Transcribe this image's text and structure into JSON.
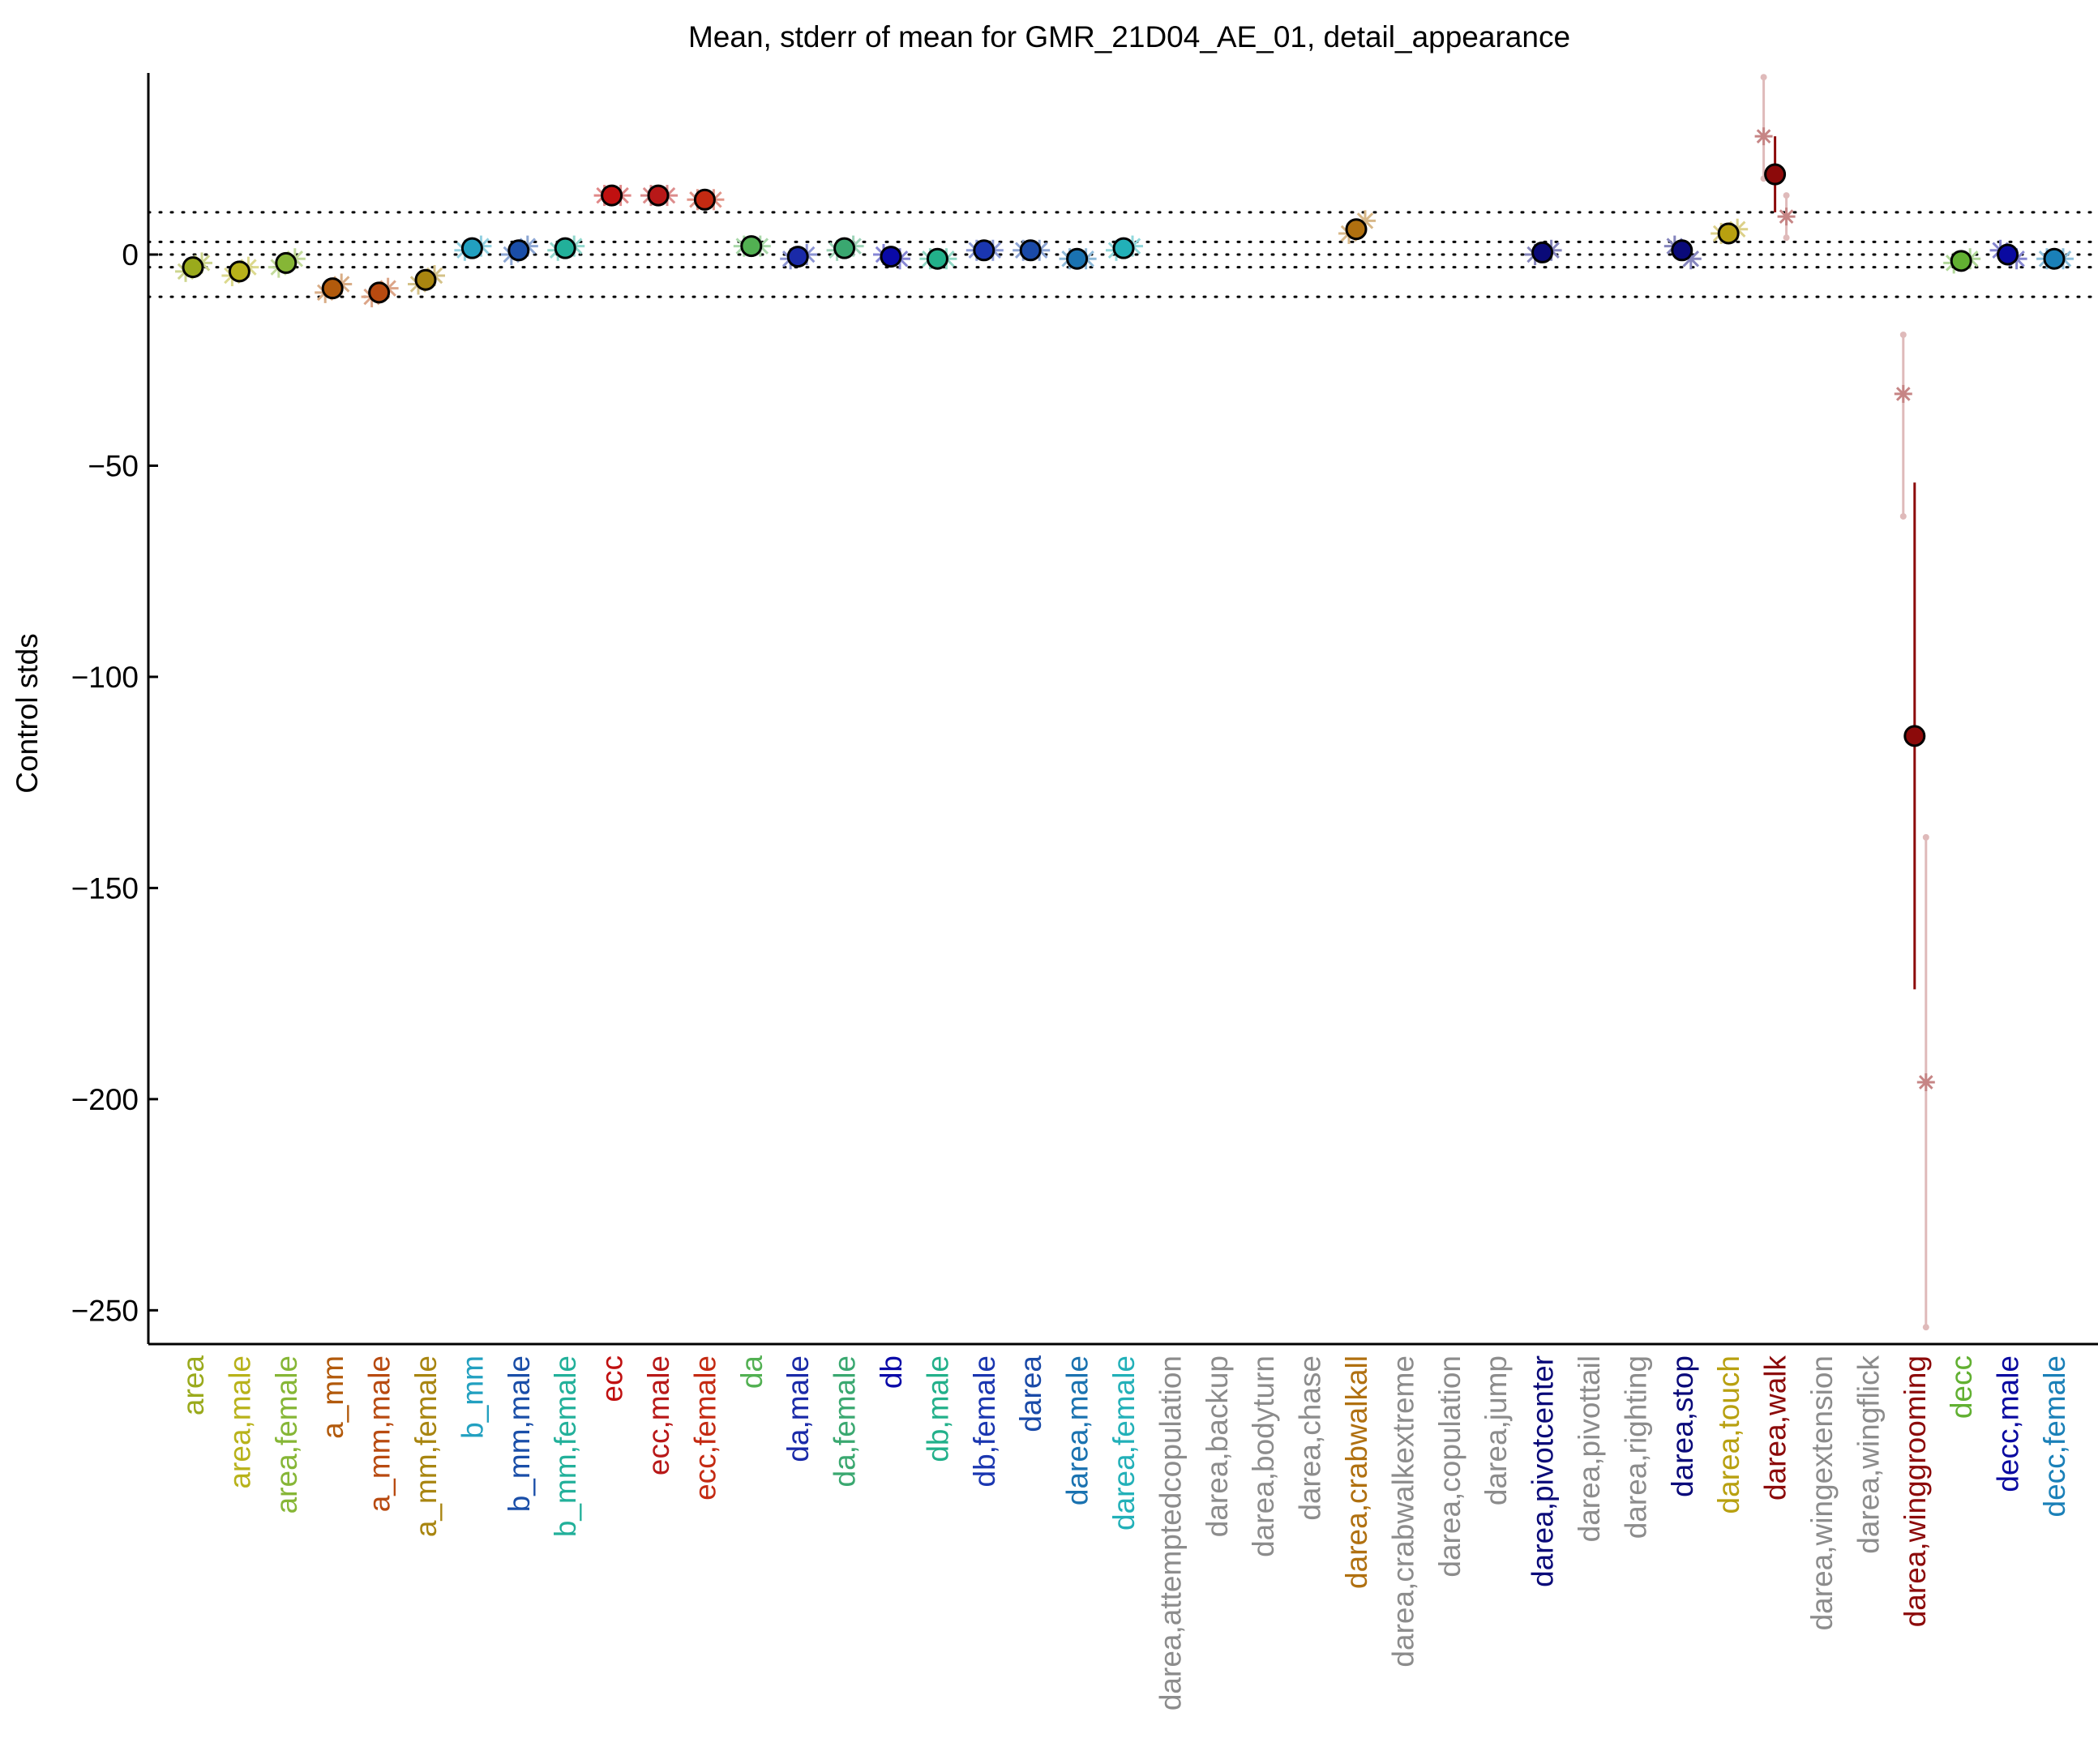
{
  "chart_data": {
    "type": "scatter",
    "title": "Mean, stderr of mean for GMR_21D04_AE_01, detail_appearance",
    "ylabel": "Control stds",
    "xlabel": "",
    "ylim": [
      -258,
      43
    ],
    "yticks": [
      -250,
      -200,
      -150,
      -100,
      -50,
      0
    ],
    "reference_lines": [
      -10,
      -3,
      0,
      3,
      10
    ],
    "grid": false,
    "categories": [
      {
        "label": "area",
        "color": "#9aaa1c",
        "mean": -3,
        "err": 1.5,
        "subs": [
          -4,
          -2
        ]
      },
      {
        "label": "area,male",
        "color": "#b8b21a",
        "mean": -4,
        "err": 1.5,
        "subs": [
          -5,
          -3
        ]
      },
      {
        "label": "area,female",
        "color": "#86b636",
        "mean": -2,
        "err": 1.2,
        "subs": [
          -3,
          -1
        ]
      },
      {
        "label": "a_mm",
        "color": "#b25a0c",
        "mean": -8,
        "err": 1.5,
        "subs": [
          -9,
          -7
        ]
      },
      {
        "label": "a_mm,male",
        "color": "#b84a10",
        "mean": -9,
        "err": 1.5,
        "subs": [
          -10,
          -8
        ]
      },
      {
        "label": "a_mm,female",
        "color": "#a88510",
        "mean": -6,
        "err": 1.5,
        "subs": [
          -7,
          -5
        ]
      },
      {
        "label": "b_mm",
        "color": "#22a0c0",
        "mean": 1.5,
        "err": 1.0,
        "subs": [
          1,
          2
        ]
      },
      {
        "label": "b_mm,male",
        "color": "#1a4ea8",
        "mean": 1,
        "err": 1.0,
        "subs": [
          0,
          2
        ]
      },
      {
        "label": "b_mm,female",
        "color": "#22b09a",
        "mean": 1.5,
        "err": 1.0,
        "subs": [
          1,
          2
        ]
      },
      {
        "label": "ecc",
        "color": "#c01010",
        "mean": 14,
        "err": 0.5,
        "subs": [
          14,
          14
        ]
      },
      {
        "label": "ecc,male",
        "color": "#b81818",
        "mean": 14,
        "err": 0.5,
        "subs": [
          14,
          14
        ]
      },
      {
        "label": "ecc,female",
        "color": "#c42a12",
        "mean": 13,
        "err": 0.5,
        "subs": [
          13,
          13
        ]
      },
      {
        "label": "da",
        "color": "#52b052",
        "mean": 2,
        "err": 1.0,
        "subs": [
          2,
          2
        ]
      },
      {
        "label": "da,male",
        "color": "#1a2aa8",
        "mean": -0.5,
        "err": 1.0,
        "subs": [
          -1,
          0
        ]
      },
      {
        "label": "da,female",
        "color": "#3aa870",
        "mean": 1.5,
        "err": 1.0,
        "subs": [
          1,
          2
        ]
      },
      {
        "label": "db",
        "color": "#0a0aa8",
        "mean": -0.5,
        "err": 1.0,
        "subs": [
          0,
          -1
        ]
      },
      {
        "label": "db,male",
        "color": "#22b08a",
        "mean": -1,
        "err": 1.0,
        "subs": [
          -1,
          -1
        ]
      },
      {
        "label": "db,female",
        "color": "#1a36b0",
        "mean": 1,
        "err": 1.0,
        "subs": [
          1,
          1
        ]
      },
      {
        "label": "darea",
        "color": "#1a4aa8",
        "mean": 1,
        "err": 1.0,
        "subs": [
          1,
          1
        ]
      },
      {
        "label": "darea,male",
        "color": "#1a72b0",
        "mean": -1,
        "err": 1.0,
        "subs": [
          -1,
          -1
        ]
      },
      {
        "label": "darea,female",
        "color": "#22b0b8",
        "mean": 1.5,
        "err": 1.0,
        "subs": [
          1,
          2
        ]
      },
      {
        "label": "darea,attemptedcopulation",
        "color": "#8c8c8c"
      },
      {
        "label": "darea,backup",
        "color": "#8c8c8c"
      },
      {
        "label": "darea,bodyturn",
        "color": "#8c8c8c"
      },
      {
        "label": "darea,chase",
        "color": "#8c8c8c"
      },
      {
        "label": "darea,crabwalkall",
        "color": "#b07010",
        "mean": 6,
        "err": 2.5,
        "subs": [
          5,
          8
        ]
      },
      {
        "label": "darea,crabwalkextreme",
        "color": "#8c8c8c"
      },
      {
        "label": "darea,copulation",
        "color": "#8c8c8c"
      },
      {
        "label": "darea,jump",
        "color": "#8c8c8c"
      },
      {
        "label": "darea,pivotcenter",
        "color": "#0a0a78",
        "mean": 0.5,
        "err": 1.0,
        "subs": [
          0,
          1
        ]
      },
      {
        "label": "darea,pivottail",
        "color": "#8c8c8c"
      },
      {
        "label": "darea,righting",
        "color": "#8c8c8c"
      },
      {
        "label": "darea,stop",
        "color": "#0a0a7a",
        "mean": 1,
        "err": 1.5,
        "subs": [
          2,
          -1
        ]
      },
      {
        "label": "darea,touch",
        "color": "#b8a010",
        "mean": 5,
        "err": 2,
        "subs": [
          5,
          6
        ]
      },
      {
        "label": "darea,walk",
        "color": "#8c0a0a",
        "mean": 19,
        "err": 9,
        "subs": [
          28,
          9
        ],
        "sub_ranges": [
          [
            18,
            42
          ],
          [
            4,
            14
          ]
        ]
      },
      {
        "label": "darea,wingextension",
        "color": "#8c8c8c"
      },
      {
        "label": "darea,wingflick",
        "color": "#8c8c8c"
      },
      {
        "label": "darea,winggrooming",
        "color": "#8c0a0a",
        "mean": -114,
        "err": 60,
        "subs": [
          -33,
          -196
        ],
        "sub_ranges": [
          [
            -62,
            -19
          ],
          [
            -254,
            -138
          ]
        ]
      },
      {
        "label": "decc",
        "color": "#62b032",
        "mean": -1.5,
        "err": 1.0,
        "subs": [
          -2,
          -1
        ]
      },
      {
        "label": "decc,male",
        "color": "#0a0aa0",
        "mean": 0,
        "err": 1.0,
        "subs": [
          1,
          -1
        ]
      },
      {
        "label": "decc,female",
        "color": "#1a80b8",
        "mean": -1,
        "err": 1.0,
        "subs": [
          -1,
          -1
        ]
      }
    ]
  }
}
